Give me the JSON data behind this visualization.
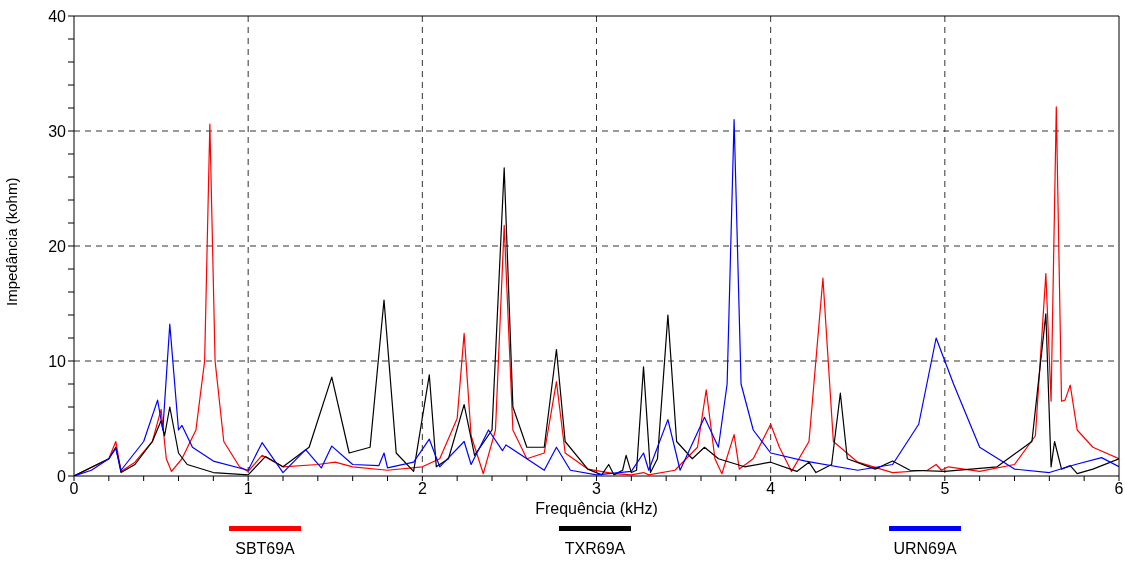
{
  "chart_data": {
    "type": "line",
    "xlabel": "Frequência (kHz)",
    "ylabel": "Impedância (kohm)",
    "xlim": [
      0,
      6
    ],
    "ylim": [
      0,
      40
    ],
    "xticks": [
      0,
      {
        "value": 0.2,
        "label": null
      },
      {
        "value": 0.4,
        "label": null
      },
      {
        "value": 0.6,
        "label": null
      },
      {
        "value": 0.8,
        "label": null
      },
      1,
      {
        "value": 1.2,
        "label": null
      },
      {
        "value": 1.4,
        "label": null
      },
      {
        "value": 1.6,
        "label": null
      },
      {
        "value": 1.8,
        "label": null
      },
      2,
      {
        "value": 2.2,
        "label": null
      },
      {
        "value": 2.4,
        "label": null
      },
      {
        "value": 2.6,
        "label": null
      },
      {
        "value": 2.8,
        "label": null
      },
      3,
      {
        "value": 3.2,
        "label": null
      },
      {
        "value": 3.4,
        "label": null
      },
      {
        "value": 3.6,
        "label": null
      },
      {
        "value": 3.8,
        "label": null
      },
      4,
      {
        "value": 4.2,
        "label": null
      },
      {
        "value": 4.4,
        "label": null
      },
      {
        "value": 4.6,
        "label": null
      },
      {
        "value": 4.8,
        "label": null
      },
      5,
      {
        "value": 5.2,
        "label": null
      },
      {
        "value": 5.4,
        "label": null
      },
      {
        "value": 5.6,
        "label": null
      },
      {
        "value": 5.8,
        "label": null
      },
      6
    ],
    "yticks": [
      0,
      {
        "value": 2,
        "label": null
      },
      {
        "value": 4,
        "label": null
      },
      {
        "value": 6,
        "label": null
      },
      {
        "value": 8,
        "label": null
      },
      10,
      {
        "value": 12,
        "label": null
      },
      {
        "value": 14,
        "label": null
      },
      {
        "value": 16,
        "label": null
      },
      {
        "value": 18,
        "label": null
      },
      20,
      {
        "value": 22,
        "label": null
      },
      {
        "value": 24,
        "label": null
      },
      {
        "value": 26,
        "label": null
      },
      {
        "value": 28,
        "label": null
      },
      30,
      {
        "value": 32,
        "label": null
      },
      {
        "value": 34,
        "label": null
      },
      {
        "value": 36,
        "label": null
      },
      {
        "value": 38,
        "label": null
      },
      40
    ],
    "grid": true,
    "legend": "bottom",
    "marker": "none",
    "line_style": "solid",
    "series": [
      {
        "name": "SBT69A",
        "color": "#ff0000",
        "x": [
          0,
          0.2,
          0.24,
          0.27,
          0.35,
          0.45,
          0.5,
          0.53,
          0.56,
          0.62,
          0.7,
          0.75,
          0.78,
          0.81,
          0.86,
          0.95,
          1.0,
          1.08,
          1.2,
          1.4,
          1.5,
          1.6,
          1.8,
          2.0,
          2.1,
          2.2,
          2.24,
          2.28,
          2.35,
          2.42,
          2.47,
          2.52,
          2.6,
          2.7,
          2.77,
          2.82,
          2.95,
          3.1,
          3.2,
          3.27,
          3.3,
          3.45,
          3.58,
          3.63,
          3.68,
          3.72,
          3.79,
          3.82,
          3.9,
          4.0,
          4.05,
          4.12,
          4.22,
          4.3,
          4.36,
          4.5,
          4.7,
          4.9,
          4.95,
          4.98,
          5.02,
          5.2,
          5.4,
          5.52,
          5.58,
          5.61,
          5.64,
          5.67,
          5.69,
          5.72,
          5.76,
          5.85,
          6.0
        ],
        "values": [
          0,
          1.5,
          3.0,
          0.4,
          1.2,
          3.0,
          5.8,
          1.5,
          0.4,
          1.5,
          4.0,
          10,
          30.6,
          10,
          3.0,
          0.8,
          0.4,
          1.8,
          0.8,
          1.0,
          1.2,
          0.8,
          0.5,
          0.8,
          1.5,
          5.0,
          12.4,
          3.5,
          0.2,
          4.0,
          21.8,
          4.0,
          1.5,
          2.0,
          8.2,
          2.0,
          0.6,
          0.2,
          0.1,
          0.3,
          0.1,
          0.5,
          2.5,
          7.5,
          1.5,
          0.2,
          3.6,
          0.6,
          1.5,
          4.5,
          2.5,
          0.4,
          3.0,
          17.2,
          3.0,
          1.2,
          0.3,
          0.5,
          1.0,
          0.5,
          0.8,
          0.4,
          1.0,
          3.5,
          17.6,
          6.5,
          32.1,
          6.5,
          6.6,
          7.9,
          4.0,
          2.5,
          1.5
        ]
      },
      {
        "name": "TXR69A",
        "color": "#000000",
        "x": [
          0,
          0.2,
          0.24,
          0.27,
          0.35,
          0.45,
          0.5,
          0.52,
          0.55,
          0.6,
          0.65,
          0.8,
          1.0,
          1.1,
          1.2,
          1.35,
          1.48,
          1.58,
          1.7,
          1.78,
          1.85,
          1.95,
          2.04,
          2.08,
          2.15,
          2.24,
          2.3,
          2.4,
          2.47,
          2.52,
          2.6,
          2.7,
          2.77,
          2.82,
          2.95,
          3.03,
          3.07,
          3.1,
          3.15,
          3.17,
          3.2,
          3.23,
          3.27,
          3.31,
          3.35,
          3.41,
          3.46,
          3.55,
          3.62,
          3.7,
          3.85,
          4.0,
          4.15,
          4.22,
          4.26,
          4.35,
          4.4,
          4.44,
          4.6,
          4.7,
          4.8,
          5.0,
          5.3,
          5.5,
          5.58,
          5.61,
          5.63,
          5.67,
          5.72,
          5.76,
          5.85,
          6.0
        ],
        "values": [
          0,
          1.5,
          2.5,
          0.3,
          1.0,
          3.0,
          4.8,
          3.5,
          6.0,
          2.0,
          1.0,
          0.3,
          0.1,
          1.7,
          0.8,
          2.5,
          8.6,
          2.0,
          2.5,
          15.3,
          2.0,
          0.4,
          8.8,
          0.8,
          1.5,
          6.2,
          1.8,
          4.0,
          26.8,
          6.0,
          2.5,
          2.5,
          11.0,
          3.0,
          0.6,
          0.1,
          1.0,
          0.1,
          0.5,
          1.8,
          0.3,
          0.5,
          9.5,
          0.3,
          1.5,
          14.0,
          3.0,
          1.5,
          2.5,
          1.5,
          0.8,
          1.2,
          0.4,
          1.2,
          0.3,
          1.0,
          7.2,
          1.5,
          0.6,
          1.3,
          0.5,
          0.4,
          0.8,
          3.0,
          14.1,
          0.8,
          3.0,
          0.6,
          0.9,
          0.2,
          0.6,
          1.5
        ]
      },
      {
        "name": "URN69A",
        "color": "#0000ff",
        "x": [
          0,
          0.1,
          0.2,
          0.24,
          0.27,
          0.4,
          0.48,
          0.51,
          0.55,
          0.6,
          0.62,
          0.68,
          0.8,
          1.0,
          1.08,
          1.2,
          1.33,
          1.42,
          1.48,
          1.6,
          1.75,
          1.78,
          1.8,
          1.95,
          2.04,
          2.1,
          2.24,
          2.28,
          2.38,
          2.46,
          2.48,
          2.7,
          2.77,
          2.85,
          3.0,
          3.2,
          3.27,
          3.3,
          3.41,
          3.48,
          3.62,
          3.7,
          3.75,
          3.79,
          3.83,
          3.9,
          4.0,
          4.2,
          4.5,
          4.7,
          4.85,
          4.95,
          5.05,
          5.2,
          5.4,
          5.6,
          5.75,
          5.9,
          6.0
        ],
        "values": [
          0,
          0.5,
          1.5,
          2.4,
          0.5,
          3.0,
          6.6,
          4.0,
          13.2,
          4.0,
          4.4,
          2.5,
          1.3,
          0.5,
          2.9,
          0.3,
          2.3,
          0.7,
          2.6,
          1.0,
          0.9,
          2.0,
          0.7,
          1.2,
          3.2,
          0.8,
          3.0,
          1.0,
          4.0,
          2.2,
          2.7,
          0.5,
          2.5,
          0.5,
          0.1,
          0.4,
          2.0,
          0.5,
          4.9,
          0.5,
          5.1,
          2.5,
          8.0,
          31.0,
          8.0,
          4.0,
          2.0,
          1.3,
          0.5,
          1.0,
          4.5,
          12.0,
          8.0,
          2.5,
          0.6,
          0.3,
          1.0,
          1.6,
          0.8
        ]
      }
    ]
  }
}
